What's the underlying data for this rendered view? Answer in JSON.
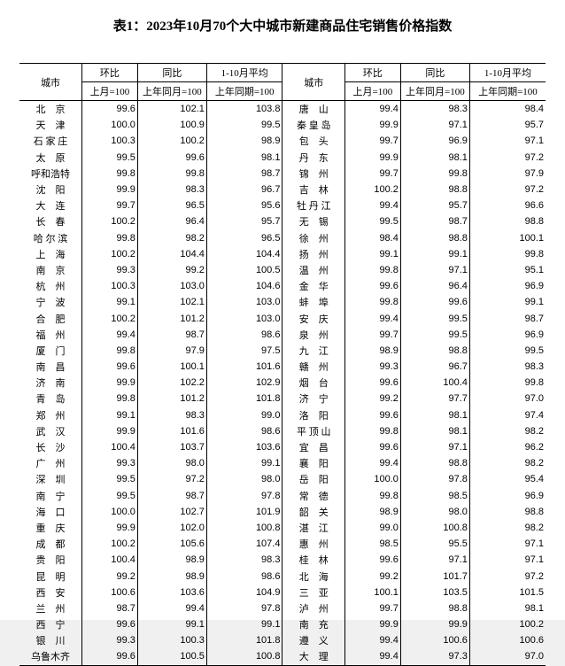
{
  "title": "表1：2023年10月70个大中城市新建商品住宅销售价格指数",
  "headers": {
    "city": "城市",
    "hb": "环比",
    "tb": "同比",
    "avg": "1-10月平均",
    "sub_prev_month": "上月=100",
    "sub_prev_year_month": "上年同月=100",
    "sub_prev_year_period": "上年同期=100"
  },
  "left": [
    {
      "city": "北　京",
      "mom": "99.6",
      "yoy": "102.1",
      "avg": "103.8"
    },
    {
      "city": "天　津",
      "mom": "100.0",
      "yoy": "100.9",
      "avg": "99.5"
    },
    {
      "city": "石 家 庄",
      "mom": "100.3",
      "yoy": "100.2",
      "avg": "98.9"
    },
    {
      "city": "太　原",
      "mom": "99.5",
      "yoy": "99.6",
      "avg": "98.1"
    },
    {
      "city": "呼和浩特",
      "mom": "99.8",
      "yoy": "99.8",
      "avg": "98.7"
    },
    {
      "city": "沈　阳",
      "mom": "99.9",
      "yoy": "98.3",
      "avg": "96.7"
    },
    {
      "city": "大　连",
      "mom": "99.7",
      "yoy": "96.5",
      "avg": "95.6"
    },
    {
      "city": "长　春",
      "mom": "100.2",
      "yoy": "96.4",
      "avg": "95.7"
    },
    {
      "city": "哈 尔 滨",
      "mom": "99.8",
      "yoy": "98.2",
      "avg": "96.5"
    },
    {
      "city": "上　海",
      "mom": "100.2",
      "yoy": "104.4",
      "avg": "104.4"
    },
    {
      "city": "南　京",
      "mom": "99.3",
      "yoy": "99.2",
      "avg": "100.5"
    },
    {
      "city": "杭　州",
      "mom": "100.3",
      "yoy": "103.0",
      "avg": "104.6"
    },
    {
      "city": "宁　波",
      "mom": "99.1",
      "yoy": "102.1",
      "avg": "103.0"
    },
    {
      "city": "合　肥",
      "mom": "100.2",
      "yoy": "101.2",
      "avg": "103.0"
    },
    {
      "city": "福　州",
      "mom": "99.4",
      "yoy": "98.7",
      "avg": "98.6"
    },
    {
      "city": "厦　门",
      "mom": "99.8",
      "yoy": "97.9",
      "avg": "97.5"
    },
    {
      "city": "南　昌",
      "mom": "99.6",
      "yoy": "100.1",
      "avg": "101.6"
    },
    {
      "city": "济　南",
      "mom": "99.9",
      "yoy": "102.2",
      "avg": "102.9"
    },
    {
      "city": "青　岛",
      "mom": "99.8",
      "yoy": "101.2",
      "avg": "101.8"
    },
    {
      "city": "郑　州",
      "mom": "99.1",
      "yoy": "98.3",
      "avg": "99.0"
    },
    {
      "city": "武　汉",
      "mom": "99.9",
      "yoy": "101.6",
      "avg": "98.6"
    },
    {
      "city": "长　沙",
      "mom": "100.4",
      "yoy": "103.7",
      "avg": "103.6"
    },
    {
      "city": "广　州",
      "mom": "99.3",
      "yoy": "98.0",
      "avg": "99.1"
    },
    {
      "city": "深　圳",
      "mom": "99.5",
      "yoy": "97.2",
      "avg": "98.0"
    },
    {
      "city": "南　宁",
      "mom": "99.5",
      "yoy": "98.7",
      "avg": "97.8"
    },
    {
      "city": "海　口",
      "mom": "100.0",
      "yoy": "102.7",
      "avg": "101.9"
    },
    {
      "city": "重　庆",
      "mom": "99.9",
      "yoy": "102.0",
      "avg": "100.8"
    },
    {
      "city": "成　都",
      "mom": "100.2",
      "yoy": "105.6",
      "avg": "107.4"
    },
    {
      "city": "贵　阳",
      "mom": "100.4",
      "yoy": "98.9",
      "avg": "98.3"
    },
    {
      "city": "昆　明",
      "mom": "99.2",
      "yoy": "98.9",
      "avg": "98.6"
    },
    {
      "city": "西　安",
      "mom": "100.6",
      "yoy": "103.6",
      "avg": "104.9"
    },
    {
      "city": "兰　州",
      "mom": "98.7",
      "yoy": "99.4",
      "avg": "97.8"
    },
    {
      "city": "西　宁",
      "mom": "99.6",
      "yoy": "99.1",
      "avg": "99.1"
    },
    {
      "city": "银　川",
      "mom": "99.3",
      "yoy": "100.3",
      "avg": "101.8"
    },
    {
      "city": "乌鲁木齐",
      "mom": "99.6",
      "yoy": "100.5",
      "avg": "100.8"
    }
  ],
  "right": [
    {
      "city": "唐　山",
      "mom": "99.4",
      "yoy": "98.3",
      "avg": "98.4"
    },
    {
      "city": "秦 皇 岛",
      "mom": "99.9",
      "yoy": "97.1",
      "avg": "95.7"
    },
    {
      "city": "包　头",
      "mom": "99.7",
      "yoy": "96.9",
      "avg": "97.1"
    },
    {
      "city": "丹　东",
      "mom": "99.9",
      "yoy": "98.1",
      "avg": "97.2"
    },
    {
      "city": "锦　州",
      "mom": "99.7",
      "yoy": "99.8",
      "avg": "97.9"
    },
    {
      "city": "吉　林",
      "mom": "100.2",
      "yoy": "98.8",
      "avg": "97.2"
    },
    {
      "city": "牡 丹 江",
      "mom": "99.4",
      "yoy": "95.7",
      "avg": "96.6"
    },
    {
      "city": "无　锡",
      "mom": "99.5",
      "yoy": "98.7",
      "avg": "98.8"
    },
    {
      "city": "徐　州",
      "mom": "98.4",
      "yoy": "98.8",
      "avg": "100.1"
    },
    {
      "city": "扬　州",
      "mom": "99.1",
      "yoy": "99.1",
      "avg": "99.8"
    },
    {
      "city": "温　州",
      "mom": "99.8",
      "yoy": "97.1",
      "avg": "95.1"
    },
    {
      "city": "金　华",
      "mom": "99.6",
      "yoy": "96.4",
      "avg": "96.9"
    },
    {
      "city": "蚌　埠",
      "mom": "99.8",
      "yoy": "99.6",
      "avg": "99.1"
    },
    {
      "city": "安　庆",
      "mom": "99.4",
      "yoy": "99.5",
      "avg": "98.7"
    },
    {
      "city": "泉　州",
      "mom": "99.7",
      "yoy": "99.5",
      "avg": "96.9"
    },
    {
      "city": "九　江",
      "mom": "98.9",
      "yoy": "98.8",
      "avg": "99.5"
    },
    {
      "city": "赣　州",
      "mom": "99.3",
      "yoy": "96.7",
      "avg": "98.3"
    },
    {
      "city": "烟　台",
      "mom": "99.6",
      "yoy": "100.4",
      "avg": "99.8"
    },
    {
      "city": "济　宁",
      "mom": "99.2",
      "yoy": "97.7",
      "avg": "97.0"
    },
    {
      "city": "洛　阳",
      "mom": "99.6",
      "yoy": "98.1",
      "avg": "97.4"
    },
    {
      "city": "平 顶 山",
      "mom": "99.8",
      "yoy": "98.1",
      "avg": "98.2"
    },
    {
      "city": "宜　昌",
      "mom": "99.6",
      "yoy": "97.1",
      "avg": "96.2"
    },
    {
      "city": "襄　阳",
      "mom": "99.4",
      "yoy": "98.8",
      "avg": "98.2"
    },
    {
      "city": "岳　阳",
      "mom": "100.0",
      "yoy": "97.8",
      "avg": "95.4"
    },
    {
      "city": "常　德",
      "mom": "99.8",
      "yoy": "98.5",
      "avg": "96.9"
    },
    {
      "city": "韶　关",
      "mom": "98.9",
      "yoy": "98.0",
      "avg": "98.8"
    },
    {
      "city": "湛　江",
      "mom": "99.0",
      "yoy": "100.8",
      "avg": "98.2"
    },
    {
      "city": "惠　州",
      "mom": "98.5",
      "yoy": "95.5",
      "avg": "97.1"
    },
    {
      "city": "桂　林",
      "mom": "99.6",
      "yoy": "97.1",
      "avg": "97.1"
    },
    {
      "city": "北　海",
      "mom": "99.2",
      "yoy": "101.7",
      "avg": "97.2"
    },
    {
      "city": "三　亚",
      "mom": "100.1",
      "yoy": "103.5",
      "avg": "101.5"
    },
    {
      "city": "泸　州",
      "mom": "99.7",
      "yoy": "98.8",
      "avg": "98.1"
    },
    {
      "city": "南　充",
      "mom": "99.9",
      "yoy": "99.9",
      "avg": "100.2"
    },
    {
      "city": "遵　义",
      "mom": "99.4",
      "yoy": "100.6",
      "avg": "100.6"
    },
    {
      "city": "大　理",
      "mom": "99.4",
      "yoy": "97.3",
      "avg": "97.0"
    }
  ]
}
